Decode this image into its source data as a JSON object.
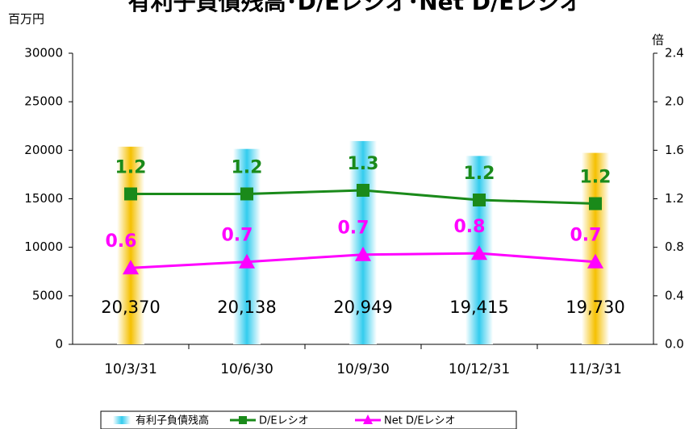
{
  "chart_data": {
    "type": "bar_line",
    "title": "有利子負債残高･D/Eレシオ･Net D/Eレシオ",
    "y_label": "百万円",
    "y2_label": "倍",
    "categories": [
      "10/3/31",
      "10/6/30",
      "10/9/30",
      "10/12/31",
      "11/3/31"
    ],
    "series": [
      {
        "name": "有利子負債残高",
        "type": "bar",
        "axis": "y",
        "color": "#33ccee",
        "colors": [
          "#f5c000",
          "#33ccee",
          "#33ccee",
          "#33ccee",
          "#f5c000"
        ],
        "values": [
          20370,
          20138,
          20949,
          19415,
          19730
        ],
        "value_labels": [
          "20,370",
          "20,138",
          "20,949",
          "19,415",
          "19,730"
        ]
      },
      {
        "name": "D/Eレシオ",
        "type": "line",
        "axis": "y2",
        "color": "#1a8a1a",
        "values": [
          1.24,
          1.24,
          1.27,
          1.19,
          1.16
        ],
        "value_labels": [
          "1.2",
          "1.2",
          "1.3",
          "1.2",
          "1.2"
        ]
      },
      {
        "name": "Net D/Eレシオ",
        "type": "line",
        "axis": "y2",
        "color": "#ff00ff",
        "values": [
          0.63,
          0.68,
          0.74,
          0.75,
          0.68
        ],
        "value_labels": [
          "0.6",
          "0.7",
          "0.7",
          "0.8",
          "0.7"
        ]
      }
    ],
    "ylim": [
      0,
      30000
    ],
    "yticks": [
      0,
      5000,
      10000,
      15000,
      20000,
      25000,
      30000
    ],
    "y2lim": [
      0,
      2.4
    ],
    "y2ticks": [
      {
        "value": 0,
        "label": "0.0"
      },
      0.4,
      0.8,
      1.2,
      1.6,
      {
        "value": 2,
        "label": "2.0"
      },
      2.4
    ]
  }
}
